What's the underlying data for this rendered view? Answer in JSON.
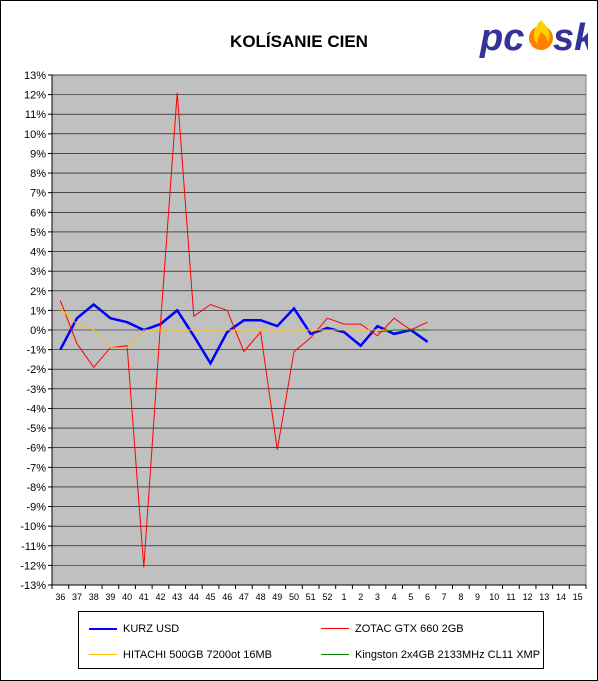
{
  "chart_data": {
    "type": "line",
    "title": "KOLÍSANIE CIEN",
    "xlabel": "",
    "ylabel": "",
    "categories": [
      "36",
      "37",
      "38",
      "39",
      "40",
      "41",
      "42",
      "43",
      "44",
      "45",
      "46",
      "47",
      "48",
      "49",
      "50",
      "51",
      "52",
      "1",
      "2",
      "3",
      "4",
      "5",
      "6",
      "7",
      "8",
      "9",
      "10",
      "11",
      "12",
      "13",
      "14",
      "15"
    ],
    "ylim": [
      -13,
      13
    ],
    "y_ticks": [
      13,
      12,
      11,
      10,
      9,
      8,
      7,
      6,
      5,
      4,
      3,
      2,
      1,
      0,
      -1,
      -2,
      -3,
      -4,
      -5,
      -6,
      -7,
      -8,
      -9,
      -10,
      -11,
      -12,
      -13
    ],
    "y_unit": "%",
    "grid": true,
    "legend_position": "bottom",
    "plot_background": "#c0c0c0",
    "series": [
      {
        "name": "KURZ USD",
        "color": "#0000ff",
        "width": 2.5,
        "values": [
          -1.0,
          0.6,
          1.3,
          0.6,
          0.4,
          0.0,
          0.3,
          1.0,
          -0.3,
          -1.7,
          -0.1,
          0.5,
          0.5,
          0.2,
          1.1,
          -0.2,
          0.1,
          -0.1,
          -0.8,
          0.2,
          -0.2,
          0.0,
          -0.6,
          null,
          null,
          null,
          null,
          null,
          null,
          null,
          null,
          null
        ]
      },
      {
        "name": "ZOTAC GTX 660 2GB",
        "color": "#ff0000",
        "width": 1,
        "values": [
          1.5,
          -0.7,
          -1.9,
          -0.9,
          -0.8,
          -12.1,
          0.3,
          12.1,
          0.7,
          1.3,
          1.0,
          -1.1,
          -0.1,
          -6.1,
          -1.1,
          -0.4,
          0.6,
          0.3,
          0.3,
          -0.3,
          0.6,
          0.0,
          0.4,
          null,
          null,
          null,
          null,
          null,
          null,
          null,
          null,
          null
        ]
      },
      {
        "name": "HITACHI 500GB 7200ot 16MB",
        "color": "#ffc000",
        "width": 1,
        "values": [
          1.1,
          0.3,
          0.0,
          -0.9,
          -0.9,
          0.0,
          0.0,
          0.0,
          0.0,
          0.0,
          0.0,
          0.0,
          0.0,
          0.0,
          0.0,
          0.0,
          0.0,
          0.0,
          0.0,
          0.0,
          0.0,
          0.0,
          0.0,
          null,
          null,
          null,
          null,
          null,
          null,
          null,
          null,
          null
        ]
      },
      {
        "name": "Kingston 2x4GB 2133MHz CL11 XMP",
        "color": "#008000",
        "width": 1,
        "values": [
          null,
          null,
          null,
          null,
          null,
          null,
          null,
          null,
          null,
          null,
          null,
          null,
          null,
          null,
          null,
          null,
          null,
          null,
          null,
          -0.1,
          0.0,
          0.0,
          0.0,
          null,
          null,
          null,
          null,
          null,
          null,
          null,
          null,
          null
        ]
      }
    ]
  },
  "logo": {
    "text_left": "pc",
    "text_right": "sk",
    "color": "#333399",
    "flame_color": "#ff8000"
  }
}
